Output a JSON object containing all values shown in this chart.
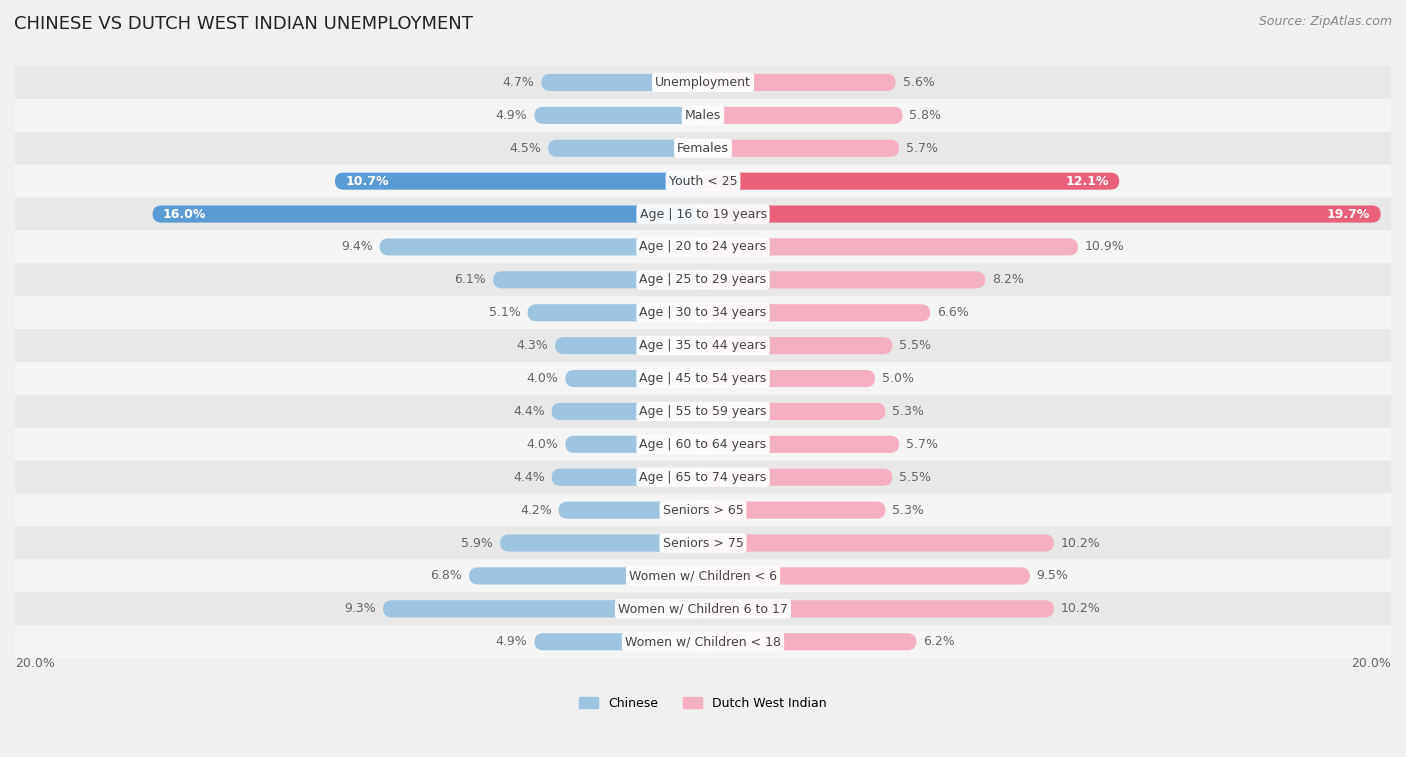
{
  "title": "CHINESE VS DUTCH WEST INDIAN UNEMPLOYMENT",
  "source": "Source: ZipAtlas.com",
  "categories": [
    "Unemployment",
    "Males",
    "Females",
    "Youth < 25",
    "Age | 16 to 19 years",
    "Age | 20 to 24 years",
    "Age | 25 to 29 years",
    "Age | 30 to 34 years",
    "Age | 35 to 44 years",
    "Age | 45 to 54 years",
    "Age | 55 to 59 years",
    "Age | 60 to 64 years",
    "Age | 65 to 74 years",
    "Seniors > 65",
    "Seniors > 75",
    "Women w/ Children < 6",
    "Women w/ Children 6 to 17",
    "Women w/ Children < 18"
  ],
  "chinese": [
    4.7,
    4.9,
    4.5,
    10.7,
    16.0,
    9.4,
    6.1,
    5.1,
    4.3,
    4.0,
    4.4,
    4.0,
    4.4,
    4.2,
    5.9,
    6.8,
    9.3,
    4.9
  ],
  "dutch_west_indian": [
    5.6,
    5.8,
    5.7,
    12.1,
    19.7,
    10.9,
    8.2,
    6.6,
    5.5,
    5.0,
    5.3,
    5.7,
    5.5,
    5.3,
    10.2,
    9.5,
    10.2,
    6.2
  ],
  "chinese_color": "#9ec4e0",
  "dutch_west_indian_color": "#f4afc0",
  "chinese_highlight_color": "#5b9bd5",
  "dutch_west_indian_highlight_color": "#e8607a",
  "background_color": "#f0f0f0",
  "row_bg_even": "#e8e8e8",
  "row_bg_odd": "#f5f5f5",
  "label_color": "#555555",
  "highlight_rows": [
    3,
    4
  ],
  "xlim": 20.0,
  "legend_chinese": "Chinese",
  "legend_dutch": "Dutch West Indian",
  "title_fontsize": 13,
  "source_fontsize": 9,
  "cat_label_fontsize": 9,
  "value_fontsize": 9
}
